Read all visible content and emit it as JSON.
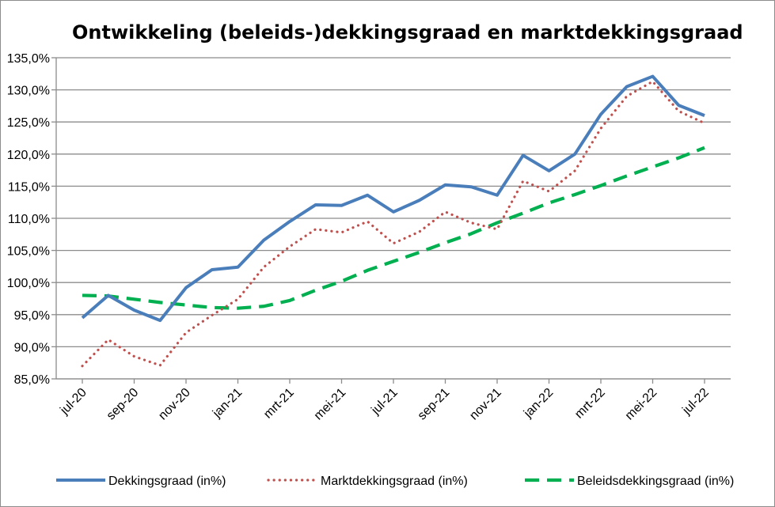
{
  "chart_data": {
    "type": "line",
    "title": "Ontwikkeling (beleids-)dekkingsgraad en marktdekkingsgraad",
    "xlabel": "",
    "ylabel": "",
    "ylim": [
      85,
      135
    ],
    "y_ticks": [
      "85,0%",
      "90,0%",
      "95,0%",
      "100,0%",
      "105,0%",
      "110,0%",
      "115,0%",
      "120,0%",
      "125,0%",
      "130,0%",
      "135,0%"
    ],
    "x": [
      "jul-20",
      "aug-20",
      "sep-20",
      "okt-20",
      "nov-20",
      "dec-20",
      "jan-21",
      "feb-21",
      "mrt-21",
      "apr-21",
      "mei-21",
      "jun-21",
      "jul-21",
      "aug-21",
      "sep-21",
      "okt-21",
      "nov-21",
      "dec-21",
      "jan-22",
      "feb-22",
      "mrt-22",
      "apr-22",
      "mei-22",
      "jun-22",
      "jul-22"
    ],
    "x_tick_labels": [
      "jul-20",
      "sep-20",
      "nov-20",
      "jan-21",
      "mrt-21",
      "mei-21",
      "jul-21",
      "sep-21",
      "nov-21",
      "jan-22",
      "mrt-22",
      "mei-22",
      "jul-22"
    ],
    "grid": true,
    "legend": "bottom",
    "series": [
      {
        "name": "Dekkingsgraad (in%)",
        "color": "#4a7ebb",
        "style": "solid",
        "values": [
          94.5,
          98.0,
          95.7,
          94.1,
          99.2,
          102.0,
          102.4,
          106.6,
          109.5,
          112.1,
          112.0,
          113.6,
          111.0,
          112.8,
          115.2,
          114.9,
          113.6,
          119.8,
          117.4,
          120.0,
          126.2,
          130.5,
          132.1,
          127.6,
          126.0
        ]
      },
      {
        "name": "Marktdekkingsgraad (in%)",
        "color": "#c0504d",
        "style": "dotted",
        "values": [
          87.0,
          91.1,
          88.5,
          87.1,
          92.2,
          94.9,
          97.4,
          102.4,
          105.6,
          108.3,
          107.8,
          109.5,
          106.1,
          107.9,
          111.0,
          109.3,
          108.3,
          115.8,
          114.2,
          117.4,
          124.0,
          129.0,
          131.3,
          126.7,
          124.8
        ]
      },
      {
        "name": "Beleidsdekkingsgraad (in%)",
        "color": "#00b050",
        "style": "dashed",
        "values": [
          98.0,
          97.9,
          97.4,
          96.9,
          96.5,
          96.1,
          96.0,
          96.3,
          97.2,
          98.8,
          100.2,
          101.9,
          103.3,
          104.7,
          106.2,
          107.6,
          109.3,
          110.8,
          112.4,
          113.7,
          115.1,
          116.6,
          118.0,
          119.4,
          121.0
        ]
      }
    ]
  }
}
